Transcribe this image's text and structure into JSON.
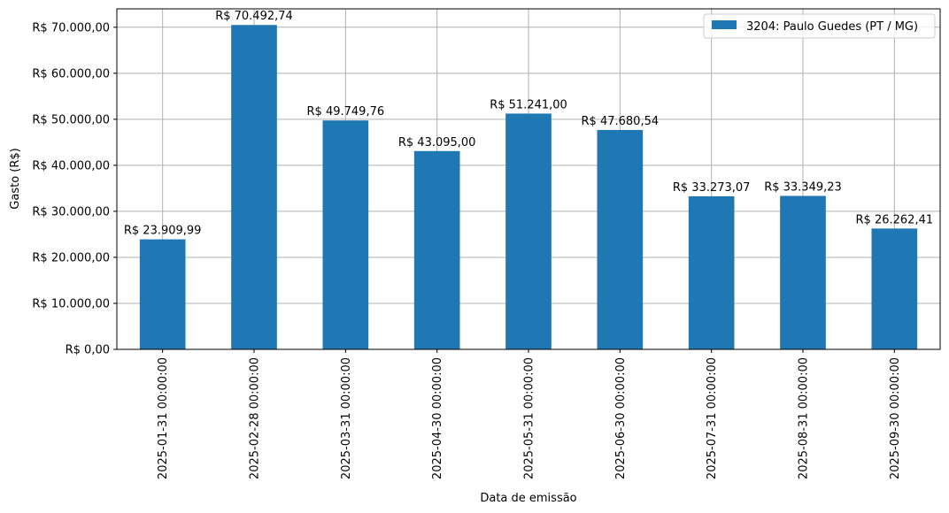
{
  "chart_data": {
    "type": "bar",
    "categories": [
      "2025-01-31 00:00:00",
      "2025-02-28 00:00:00",
      "2025-03-31 00:00:00",
      "2025-04-30 00:00:00",
      "2025-05-31 00:00:00",
      "2025-06-30 00:00:00",
      "2025-07-31 00:00:00",
      "2025-08-31 00:00:00",
      "2025-09-30 00:00:00"
    ],
    "series": [
      {
        "name": "3204: Paulo Guedes (PT / MG)",
        "color": "#1f77b4",
        "values": [
          23909.99,
          70492.74,
          49749.76,
          43095.0,
          51241.0,
          47680.54,
          33273.07,
          33349.23,
          26262.41
        ],
        "data_labels": [
          "R$ 23.909,99",
          "R$ 70.492,74",
          "R$ 49.749,76",
          "R$ 43.095,00",
          "R$ 51.241,00",
          "R$ 47.680,54",
          "R$ 33.273,07",
          "R$ 33.349,23",
          "R$ 26.262,41"
        ]
      }
    ],
    "title": "",
    "xlabel": "Data de emissão",
    "ylabel": "Gasto (R$)",
    "ylim": [
      0,
      74000
    ],
    "yticks": [
      0,
      10000,
      20000,
      30000,
      40000,
      50000,
      60000,
      70000
    ],
    "ytick_labels": [
      "R$ 0,00",
      "R$ 10.000,00",
      "R$ 20.000,00",
      "R$ 30.000,00",
      "R$ 40.000,00",
      "R$ 50.000,00",
      "R$ 60.000,00",
      "R$ 70.000,00"
    ],
    "grid": true,
    "legend_position": "top-right"
  }
}
